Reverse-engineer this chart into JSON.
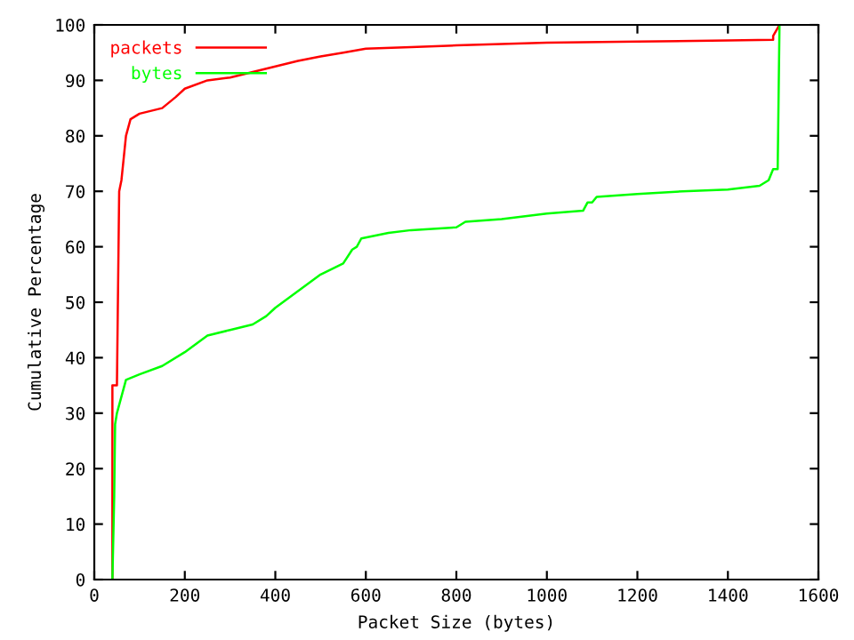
{
  "chart_data": {
    "type": "line",
    "xlabel": "Packet Size (bytes)",
    "ylabel": "Cumulative Percentage",
    "xlim": [
      0,
      1600
    ],
    "ylim": [
      0,
      100
    ],
    "xticks": [
      0,
      200,
      400,
      600,
      800,
      1000,
      1200,
      1400,
      1600
    ],
    "yticks": [
      0,
      10,
      20,
      30,
      40,
      50,
      60,
      70,
      80,
      90,
      100
    ],
    "grid": false,
    "legend": "top left",
    "series": [
      {
        "name": "packets",
        "color": "#ff0000",
        "x": [
          40,
          40,
          50,
          55,
          60,
          65,
          70,
          80,
          100,
          150,
          180,
          200,
          250,
          300,
          350,
          400,
          450,
          500,
          550,
          600,
          700,
          800,
          1000,
          1200,
          1400,
          1500,
          1500,
          1514
        ],
        "values": [
          0,
          35,
          35,
          70,
          72,
          76,
          80,
          83,
          84,
          85,
          87,
          88.5,
          90,
          90.5,
          91.5,
          92.5,
          93.5,
          94.3,
          95,
          95.7,
          96,
          96.3,
          96.8,
          97,
          97.2,
          97.3,
          98,
          100
        ]
      },
      {
        "name": "bytes",
        "color": "#00ff00",
        "x": [
          40,
          44,
          46,
          50,
          60,
          70,
          100,
          150,
          200,
          250,
          300,
          350,
          380,
          400,
          450,
          500,
          550,
          570,
          580,
          590,
          650,
          700,
          800,
          820,
          900,
          1000,
          1080,
          1090,
          1100,
          1110,
          1200,
          1300,
          1400,
          1470,
          1490,
          1500,
          1510,
          1514
        ],
        "values": [
          0,
          15,
          28,
          30,
          33,
          36,
          37,
          38.5,
          41,
          44,
          45,
          46,
          47.5,
          49,
          52,
          55,
          57,
          59.5,
          60,
          61.5,
          62.5,
          63,
          63.5,
          64.5,
          65,
          66,
          66.5,
          68,
          68,
          69,
          69.5,
          70,
          70.3,
          71,
          72,
          74,
          74,
          100
        ]
      }
    ]
  }
}
